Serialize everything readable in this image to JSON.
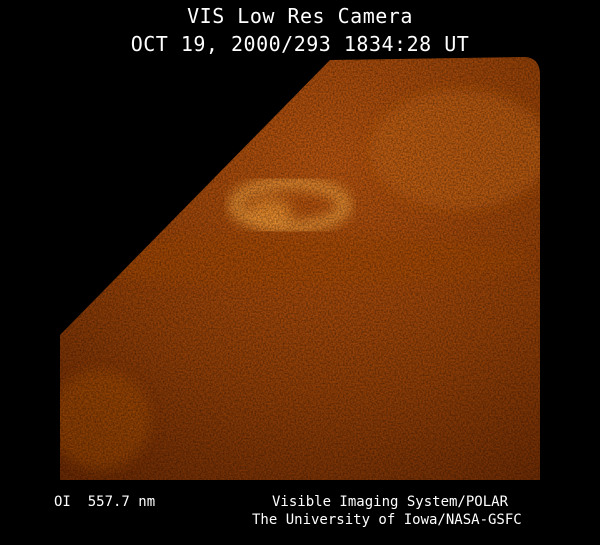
{
  "header": {
    "title": "VIS Low Res Camera",
    "timestamp": "OCT 19, 2000/293 1834:28 UT"
  },
  "footer": {
    "wavelength": "OI  557.7 nm",
    "instrument": "Visible Imaging System/POLAR",
    "credit": "The University of Iowa/NASA-GSFC"
  },
  "colors": {
    "background": "#000000",
    "aurora_base": "#8a3a06",
    "aurora_bright": "#f0a040"
  }
}
